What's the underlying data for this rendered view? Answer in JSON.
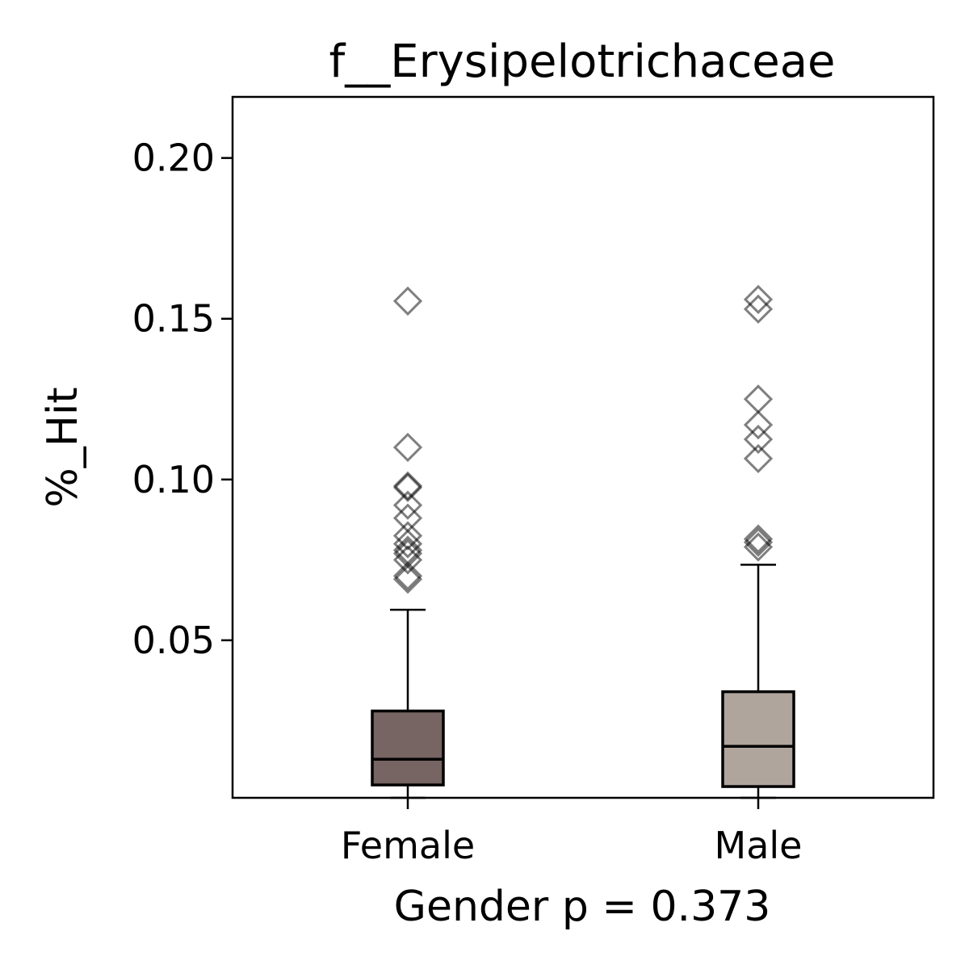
{
  "chart_data": {
    "type": "box",
    "title": "f__Erysipelotrichaceae",
    "xlabel": "Gender p = 0.373",
    "ylabel": "%_Hit",
    "ylim": [
      0.001,
      0.219
    ],
    "yticks": [
      "0.05",
      "0.10",
      "0.15",
      "0.20"
    ],
    "categories": [
      "Female",
      "Male"
    ],
    "grid": false,
    "series": [
      {
        "category": "Female",
        "color": "#766563",
        "whisker_low": 0.001,
        "q1": 0.005,
        "median": 0.013,
        "q3": 0.028,
        "whisker_high": 0.0595,
        "outliers": [
          0.1555,
          0.11,
          0.098,
          0.0975,
          0.092,
          0.088,
          0.0825,
          0.08,
          0.078,
          0.077,
          0.075,
          0.07,
          0.069
        ]
      },
      {
        "category": "Male",
        "color": "#b0a59d",
        "whisker_low": 0.001,
        "q1": 0.0045,
        "median": 0.017,
        "q3": 0.034,
        "whisker_high": 0.0735,
        "outliers": [
          0.156,
          0.153,
          0.125,
          0.117,
          0.1125,
          0.1065,
          0.0815,
          0.0805,
          0.079
        ]
      }
    ]
  }
}
